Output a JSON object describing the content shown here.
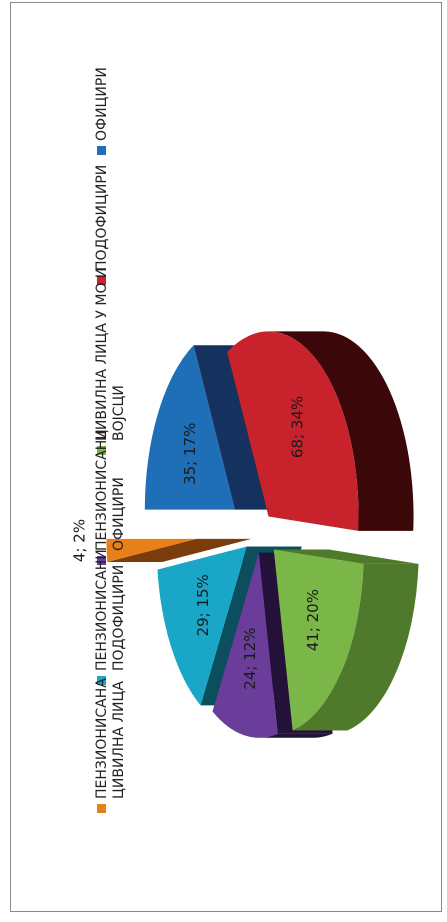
{
  "chart_data": {
    "type": "pie",
    "style": "3d-exploded",
    "orientation": "rotated-90-ccw",
    "legend_position": "right",
    "categories": [
      "ОФИЦИРИ",
      "ПОДОФИЦИРИ",
      "ЦИВИЛНА ЛИЦА У МО И ВОЈСЦИ",
      "ПЕНЗИОНИСАНИ ОФИЦИРИ",
      "ПЕНЗИОНИСАНИ ПОДОФИЦИРИ",
      "ПЕНЗИОНИСАНА ЦИВИЛНА ЛИЦА"
    ],
    "legend_lines": [
      [
        "ОФИЦИРИ"
      ],
      [
        "ПОДОФИЦИРИ"
      ],
      [
        "ЦИВИЛНА ЛИЦА У МО И",
        "ВОЈСЦИ"
      ],
      [
        "ПЕНЗИОНИСАНИ",
        "ОФИЦИРИ"
      ],
      [
        "ПЕНЗИОНИСАНИ",
        "ПОДОФИЦИРИ"
      ],
      [
        "ПЕНЗИОНИСАНА",
        "ЦИВИЛНА ЛИЦА"
      ]
    ],
    "values": [
      35,
      68,
      41,
      24,
      29,
      4
    ],
    "percents": [
      17,
      34,
      20,
      12,
      15,
      2
    ],
    "data_labels": [
      "35; 17%",
      "68; 34%",
      "41; 20%",
      "24; 12%",
      "29; 15%",
      "4; 2%"
    ],
    "colors": [
      "#1f6fb8",
      "#c8232c",
      "#7ab648",
      "#6a3d9a",
      "#1aa7c7",
      "#e8801a"
    ],
    "side_colors": [
      "#15325e",
      "#3c0708",
      "#4f7a2c",
      "#24113a",
      "#0b4e5e",
      "#7a3c0a"
    ]
  }
}
